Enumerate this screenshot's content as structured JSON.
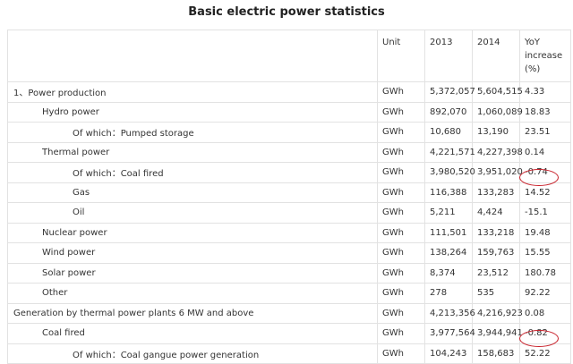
{
  "header": {
    "title": "Basic electric power statistics"
  },
  "table": {
    "columns": [
      "",
      "Unit",
      "2013",
      "2014",
      "YoY increase (%)"
    ],
    "rows": [
      [
        "1、Power production",
        "GWh",
        "5,372,057",
        "5,604,515",
        "4.33"
      ],
      [
        "Hydro power",
        "GWh",
        "892,070",
        "1,060,089",
        "18.83"
      ],
      [
        "Of which：Pumped storage",
        "GWh",
        "10,680",
        "13,190",
        "23.51"
      ],
      [
        "Thermal power",
        "GWh",
        "4,221,571",
        "4,227,398",
        "0.14"
      ],
      [
        "Of which：Coal fired",
        "GWh",
        "3,980,520",
        "3,951,020",
        "-0.74"
      ],
      [
        "Gas",
        "GWh",
        "116,388",
        "133,283",
        "14.52"
      ],
      [
        "Oil",
        "GWh",
        "5,211",
        "4,424",
        "-15.1"
      ],
      [
        "Nuclear power",
        "GWh",
        "111,501",
        "133,218",
        "19.48"
      ],
      [
        "Wind power",
        "GWh",
        "138,264",
        "159,763",
        "15.55"
      ],
      [
        "Solar power",
        "GWh",
        "8,374",
        "23,512",
        "180.78"
      ],
      [
        "Other",
        "GWh",
        "278",
        "535",
        "92.22"
      ],
      [
        "Generation by thermal power plants 6 MW and above",
        "GWh",
        "4,213,356",
        "4,216,923",
        "0.08"
      ],
      [
        "Coal fired",
        "GWh",
        "3,977,564",
        "3,944,941",
        "-0.82"
      ],
      [
        "Of which：Coal gangue power generation",
        "GWh",
        "104,243",
        "158,683",
        "52.22"
      ]
    ]
  }
}
